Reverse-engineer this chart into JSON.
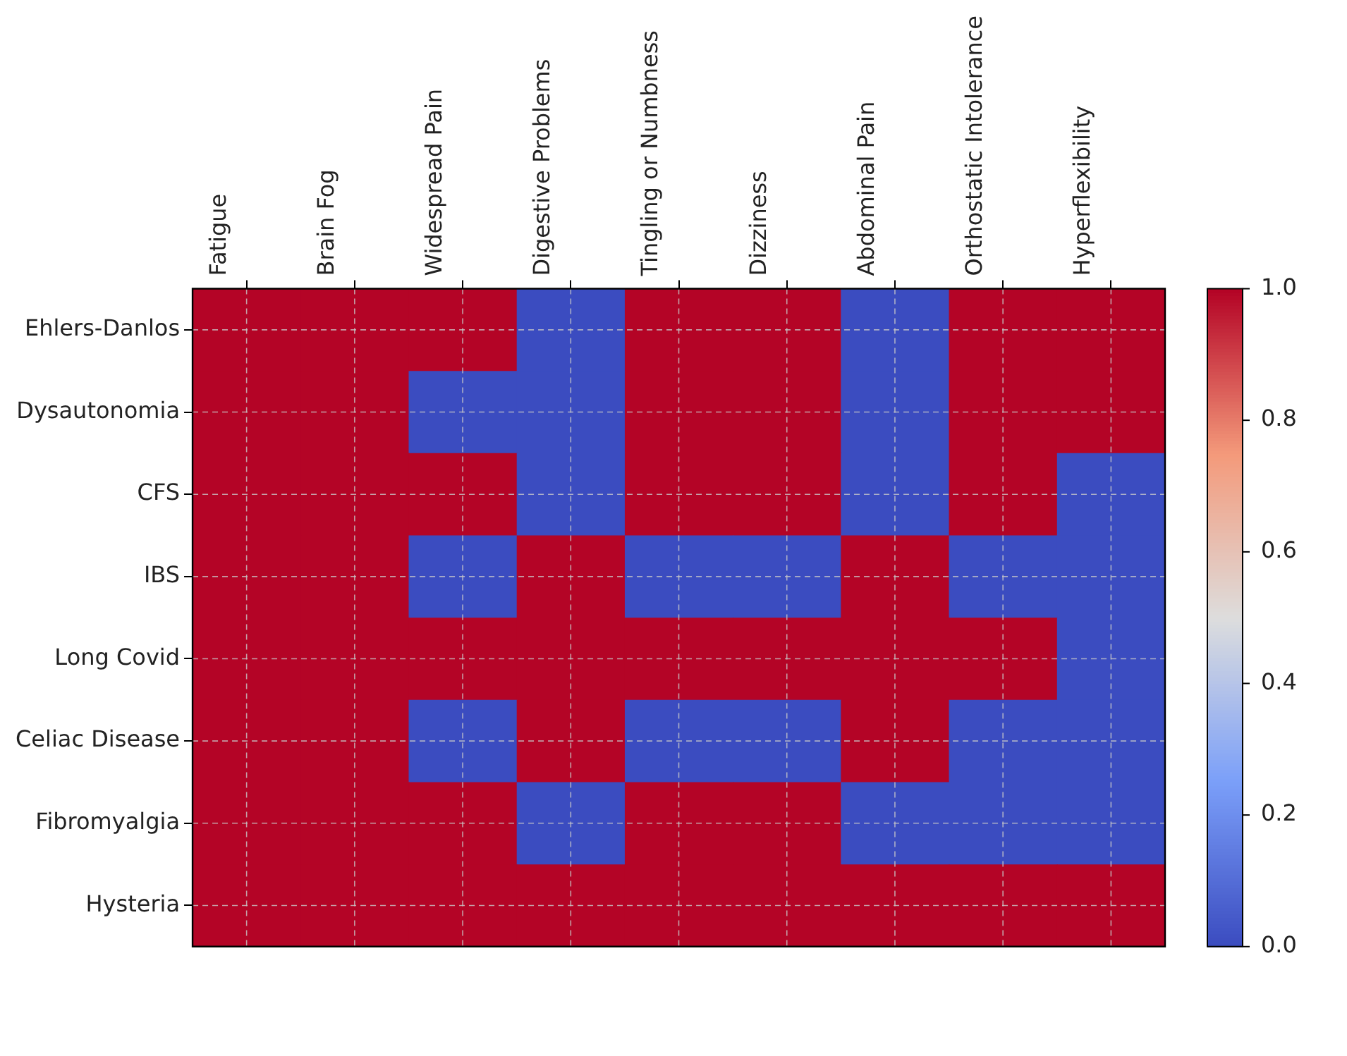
{
  "chart_data": {
    "type": "heatmap",
    "categories": [
      "Fatigue",
      "Brain Fog",
      "Widespread Pain",
      "Digestive Problems",
      "Tingling or Numbness",
      "Dizziness",
      "Abdominal Pain",
      "Orthostatic Intolerance",
      "Hyperflexibility"
    ],
    "y_categories": [
      "Ehlers-Danlos",
      "Dysautonomia",
      "CFS",
      "IBS",
      "Long Covid",
      "Celiac Disease",
      "Fibromyalgia",
      "Hysteria"
    ],
    "cells": [
      [
        1,
        1,
        1,
        0,
        1,
        1,
        0,
        1,
        1
      ],
      [
        1,
        1,
        0,
        0,
        1,
        1,
        0,
        1,
        1
      ],
      [
        1,
        1,
        1,
        0,
        1,
        1,
        0,
        1,
        0
      ],
      [
        1,
        1,
        0,
        1,
        0,
        0,
        1,
        0,
        0
      ],
      [
        1,
        1,
        1,
        1,
        1,
        1,
        1,
        1,
        0
      ],
      [
        1,
        1,
        0,
        1,
        0,
        0,
        1,
        0,
        0
      ],
      [
        1,
        1,
        1,
        0,
        1,
        1,
        0,
        0,
        0
      ],
      [
        1,
        1,
        1,
        1,
        1,
        1,
        1,
        1,
        1
      ]
    ],
    "clim": [
      0,
      1
    ],
    "cticks": [
      {
        "value": 0,
        "label": "0.0"
      },
      {
        "value": 0.2,
        "label": "0.2"
      },
      {
        "value": 0.4,
        "label": "0.4"
      },
      {
        "value": 0.6,
        "label": "0.6"
      },
      {
        "value": 0.8,
        "label": "0.8"
      },
      {
        "value": 1,
        "label": "1.0"
      }
    ],
    "grid": true
  }
}
